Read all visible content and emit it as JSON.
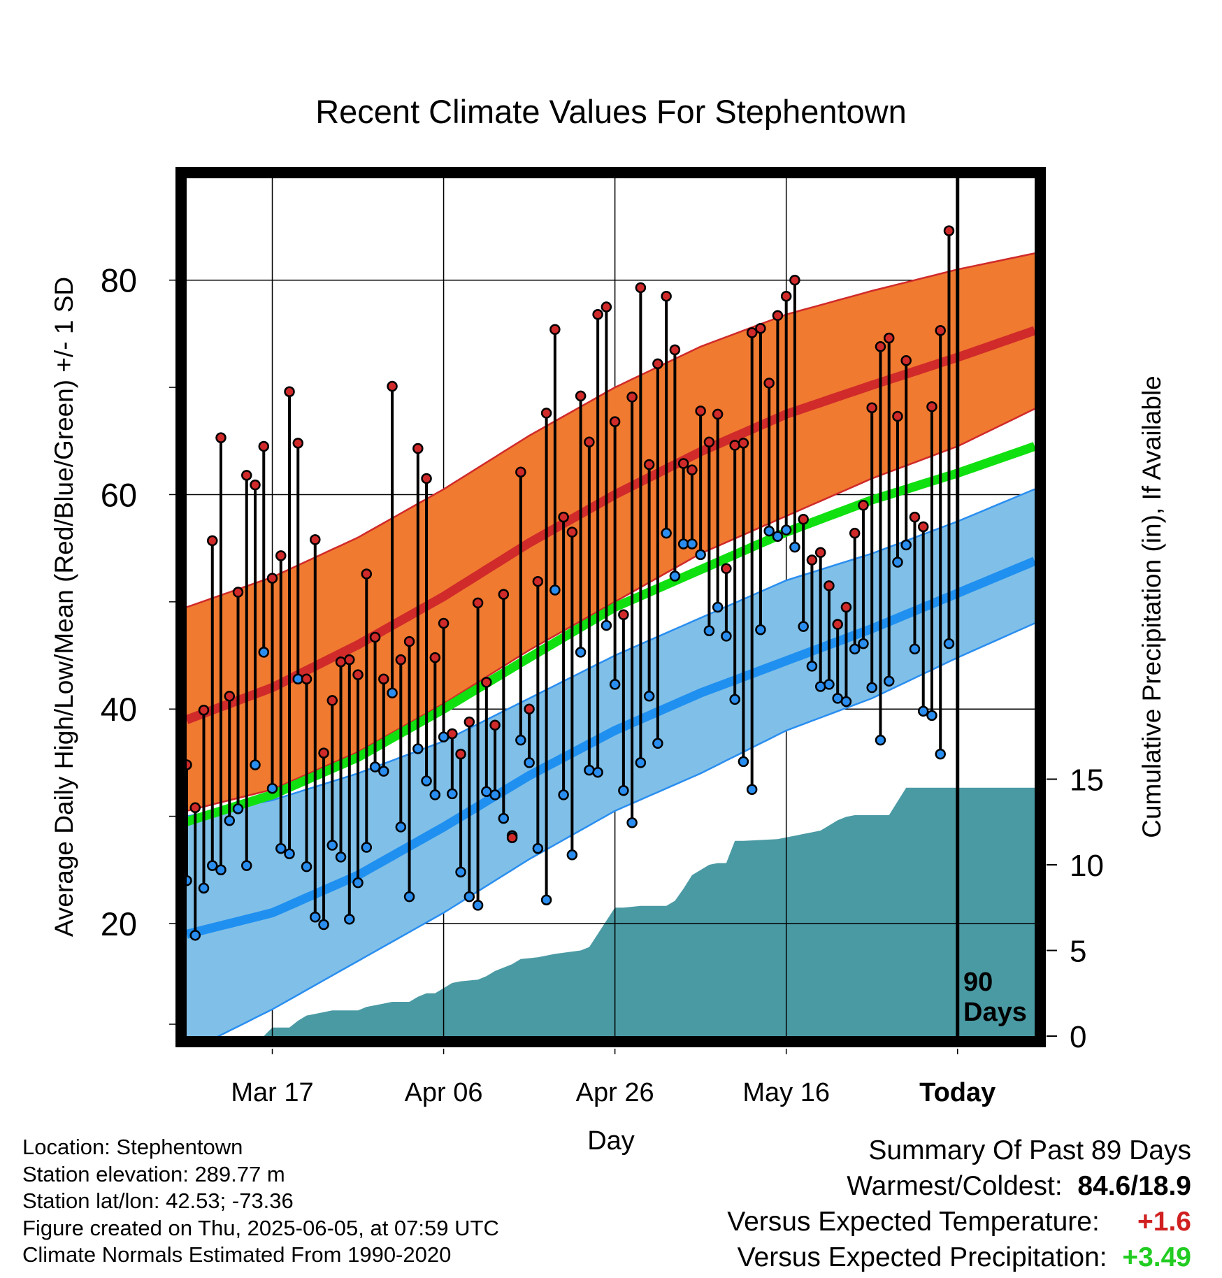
{
  "chart_data": {
    "type": "line",
    "title": "Recent Climate Values For Stephentown",
    "xlabel": "Day",
    "ylabel": "Average Daily High/Low/Mean (Red/Blue/Green) +/- 1 SD",
    "y2label": "Cumulative Precipitation (in), If Available",
    "ylim": [
      9.5,
      89.5
    ],
    "y2lim": [
      0,
      50
    ],
    "y_ticks": [
      80,
      60,
      40,
      20
    ],
    "y2_ticks": [
      15,
      10,
      5,
      0
    ],
    "day_range": [
      -90,
      9
    ],
    "x_ticks": [
      {
        "day": -80,
        "label": "Mar 17"
      },
      {
        "day": -60,
        "label": "Apr 06"
      },
      {
        "day": -40,
        "label": "Apr 26"
      },
      {
        "day": -20,
        "label": "May 16"
      },
      {
        "day": 0,
        "label": "Today"
      }
    ],
    "today_marker_label": [
      "90",
      "Days"
    ],
    "grid": true,
    "colors": {
      "high_band": "#f07a30",
      "high_normal": "#d02a2a",
      "low_band": "#80c0e8",
      "low_normal": "#2090f0",
      "low_band_edge": "#2a8ef0",
      "mean_normal": "#10e010",
      "precip": "#4a9aa4",
      "high_marker": "#d02a2a",
      "low_marker": "#2a8ef0"
    },
    "normals": {
      "days": [
        -90,
        -80,
        -70,
        -60,
        -50,
        -40,
        -30,
        -20,
        -10,
        0,
        9
      ],
      "high_upper": [
        49.5,
        52.3,
        56.0,
        60.5,
        65.5,
        70.0,
        73.8,
        76.8,
        79.0,
        81.0,
        82.5
      ],
      "high_mean": [
        39.0,
        42.0,
        46.0,
        50.5,
        55.5,
        60.0,
        64.0,
        67.5,
        70.2,
        72.8,
        75.3
      ],
      "high_lower": [
        30.5,
        32.5,
        36.0,
        40.5,
        45.5,
        50.0,
        54.5,
        58.0,
        61.5,
        64.5,
        68.0
      ],
      "mean": [
        29.5,
        32.0,
        35.5,
        40.0,
        44.8,
        49.5,
        53.0,
        56.5,
        59.5,
        62.0,
        64.5
      ],
      "low_upper": [
        30.0,
        31.5,
        34.0,
        37.0,
        41.0,
        45.0,
        48.5,
        52.0,
        54.5,
        57.5,
        60.5
      ],
      "low_mean": [
        19.0,
        21.0,
        24.5,
        29.0,
        33.8,
        38.0,
        41.5,
        44.5,
        47.5,
        50.8,
        53.8
      ],
      "low_lower": [
        8.0,
        12.0,
        16.5,
        21.0,
        26.0,
        30.5,
        34.0,
        38.0,
        41.0,
        44.8,
        48.0
      ]
    },
    "highs": [
      34.8,
      30.8,
      39.9,
      55.7,
      65.3,
      41.2,
      50.9,
      61.8,
      60.9,
      64.5,
      52.2,
      54.3,
      69.6,
      64.8,
      42.8,
      55.8,
      35.9,
      40.8,
      44.4,
      44.6,
      43.2,
      52.6,
      46.7,
      42.8,
      70.1,
      44.6,
      46.3,
      64.3,
      61.5,
      44.8,
      48.0,
      37.7,
      35.8,
      38.8,
      49.9,
      42.5,
      38.5,
      50.7,
      28.0,
      62.1,
      40.0,
      51.9,
      67.6,
      75.4,
      57.9,
      56.5,
      69.2,
      64.9,
      76.8,
      77.5,
      66.8,
      48.8,
      69.1,
      79.3,
      62.8,
      72.2,
      78.5,
      73.5,
      62.9,
      62.3,
      67.8,
      64.9,
      67.5,
      53.1,
      64.6,
      64.8,
      75.1,
      75.5,
      70.4,
      76.7,
      78.5,
      80.0,
      57.7,
      53.9,
      54.6,
      51.5,
      47.9,
      49.5,
      56.4,
      59.0,
      68.1,
      73.8,
      74.6,
      67.3,
      72.5,
      57.9,
      57.0,
      68.2,
      75.3,
      84.6
    ],
    "lows": [
      24.0,
      18.9,
      23.3,
      25.4,
      25.0,
      29.6,
      30.7,
      25.4,
      34.8,
      45.3,
      32.6,
      27.0,
      26.5,
      42.8,
      25.3,
      20.6,
      19.9,
      27.3,
      26.2,
      20.4,
      23.8,
      27.1,
      34.6,
      34.2,
      41.5,
      29.0,
      22.5,
      36.3,
      33.3,
      32.0,
      37.4,
      32.1,
      24.8,
      22.5,
      21.7,
      32.3,
      32.0,
      29.8,
      28.2,
      37.1,
      35.0,
      27.0,
      22.2,
      51.1,
      32.0,
      26.4,
      45.3,
      34.3,
      34.1,
      47.8,
      42.3,
      32.4,
      29.4,
      35.0,
      41.2,
      36.8,
      56.4,
      52.4,
      55.4,
      55.4,
      54.4,
      47.3,
      49.5,
      46.8,
      40.9,
      35.1,
      32.5,
      47.4,
      56.6,
      56.1,
      56.7,
      55.1,
      47.7,
      44.0,
      42.1,
      42.3,
      41.0,
      40.7,
      45.6,
      46.1,
      42.0,
      37.1,
      42.6,
      53.7,
      55.3,
      45.6,
      39.8,
      39.4,
      35.8,
      46.1
    ],
    "precip_cumulative": {
      "days": [
        -90,
        -81,
        -80,
        -78,
        -77,
        -76,
        -75,
        -73,
        -70,
        -69,
        -67,
        -66,
        -64,
        -63,
        -62,
        -61,
        -60,
        -59,
        -58,
        -56,
        -55,
        -54,
        -52,
        -51,
        -49,
        -47,
        -44,
        -43,
        -40,
        -39,
        -37,
        -34,
        -33,
        -32,
        -31,
        -29,
        -28,
        -27,
        -26,
        -25,
        -21,
        -20,
        -18,
        -17,
        -16,
        -15,
        -14,
        -13,
        -12,
        -10,
        -8,
        -7,
        -6,
        -5,
        -4,
        0,
        9
      ],
      "values": [
        0,
        0,
        0.5,
        0.5,
        0.9,
        1.2,
        1.3,
        1.5,
        1.5,
        1.7,
        1.9,
        2.0,
        2.0,
        2.3,
        2.5,
        2.5,
        2.8,
        3.1,
        3.2,
        3.3,
        3.5,
        3.8,
        4.2,
        4.5,
        4.6,
        4.8,
        5.0,
        5.2,
        7.5,
        7.5,
        7.6,
        7.6,
        7.9,
        8.6,
        9.4,
        10.0,
        10.1,
        10.1,
        11.4,
        11.4,
        11.5,
        11.6,
        11.8,
        11.9,
        12.0,
        12.3,
        12.6,
        12.8,
        12.9,
        12.9,
        12.9,
        13.7,
        14.5,
        14.5,
        14.5,
        14.5,
        14.5
      ]
    }
  },
  "footer_left": {
    "location": "Location: Stephentown",
    "elevation": "Station elevation: 289.77 m",
    "latlon": "Station lat/lon: 42.53; -73.36",
    "created": "Figure created on Thu, 2025-06-05, at 07:59 UTC",
    "normals": "Climate Normals Estimated From 1990-2020"
  },
  "summary": {
    "heading": "Summary Of Past 89 Days",
    "warmest_coldest_label": "Warmest/Coldest:",
    "warmest_coldest_value": "84.6/18.9",
    "temp_label": "Versus Expected Temperature:",
    "temp_value": "+1.6",
    "precip_label": "Versus Expected Precipitation:",
    "precip_value": "+3.49"
  }
}
